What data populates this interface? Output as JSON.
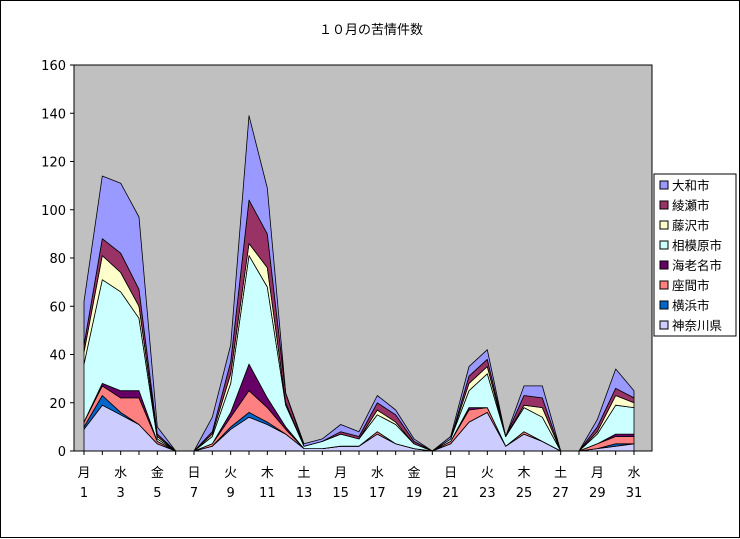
{
  "chart_data": {
    "type": "area",
    "stacked": true,
    "title": "１０月の苦情件数",
    "ylim": [
      0,
      160
    ],
    "yticks": [
      0,
      20,
      40,
      60,
      80,
      100,
      120,
      140,
      160
    ],
    "grid": false,
    "plot_background": "#c0c0c0",
    "legend_position": "right",
    "x": [
      1,
      2,
      3,
      4,
      5,
      6,
      7,
      8,
      9,
      10,
      11,
      12,
      13,
      14,
      15,
      16,
      17,
      18,
      19,
      20,
      21,
      22,
      23,
      24,
      25,
      26,
      27,
      28,
      29,
      30,
      31
    ],
    "tick_labels": [
      {
        "day": "月",
        "num": "1"
      },
      {
        "day": "水",
        "num": "3"
      },
      {
        "day": "金",
        "num": "5"
      },
      {
        "day": "日",
        "num": "7"
      },
      {
        "day": "火",
        "num": "9"
      },
      {
        "day": "木",
        "num": "11"
      },
      {
        "day": "土",
        "num": "13"
      },
      {
        "day": "月",
        "num": "15"
      },
      {
        "day": "水",
        "num": "17"
      },
      {
        "day": "金",
        "num": "19"
      },
      {
        "day": "日",
        "num": "21"
      },
      {
        "day": "火",
        "num": "23"
      },
      {
        "day": "木",
        "num": "25"
      },
      {
        "day": "土",
        "num": "27"
      },
      {
        "day": "月",
        "num": "29"
      },
      {
        "day": "水",
        "num": "31"
      }
    ],
    "series": [
      {
        "name": "神奈川県",
        "color": "#ccccff",
        "values": [
          9,
          19,
          15,
          11,
          3,
          0,
          0,
          2,
          9,
          14,
          11,
          7,
          1,
          1,
          2,
          2,
          7,
          3,
          1,
          0,
          3,
          12,
          16,
          2,
          7,
          4,
          0,
          0,
          1,
          2,
          3
        ]
      },
      {
        "name": "横浜市",
        "color": "#0066cc",
        "values": [
          1,
          4,
          1,
          0,
          0,
          0,
          0,
          0,
          1,
          2,
          1,
          0,
          0,
          0,
          0,
          0,
          0,
          0,
          0,
          0,
          0,
          0,
          0,
          0,
          0,
          0,
          0,
          0,
          0,
          1,
          0
        ]
      },
      {
        "name": "座間市",
        "color": "#ff8080",
        "values": [
          2,
          4,
          6,
          11,
          1,
          0,
          0,
          1,
          4,
          9,
          6,
          2,
          0,
          0,
          0,
          0,
          1,
          0,
          0,
          0,
          1,
          5,
          2,
          0,
          1,
          0,
          0,
          0,
          2,
          3,
          3
        ]
      },
      {
        "name": "海老名市",
        "color": "#660066",
        "values": [
          0,
          1,
          3,
          3,
          0,
          0,
          0,
          0,
          2,
          11,
          4,
          1,
          0,
          0,
          0,
          0,
          0,
          0,
          0,
          0,
          0,
          1,
          0,
          0,
          0,
          0,
          0,
          0,
          0,
          1,
          1
        ]
      },
      {
        "name": "相模原市",
        "color": "#ccffff",
        "values": [
          24,
          43,
          41,
          30,
          1,
          0,
          0,
          3,
          12,
          45,
          46,
          9,
          1,
          3,
          5,
          3,
          7,
          8,
          2,
          0,
          1,
          7,
          14,
          4,
          10,
          10,
          0,
          0,
          4,
          12,
          11
        ]
      },
      {
        "name": "藤沢市",
        "color": "#ffffcc",
        "values": [
          5,
          10,
          8,
          5,
          1,
          0,
          0,
          1,
          4,
          5,
          8,
          1,
          0,
          0,
          0,
          0,
          2,
          1,
          0,
          0,
          0,
          3,
          3,
          0,
          1,
          4,
          0,
          0,
          1,
          4,
          2
        ]
      },
      {
        "name": "綾瀬市",
        "color": "#993366",
        "values": [
          3,
          7,
          8,
          7,
          1,
          0,
          0,
          1,
          5,
          18,
          14,
          4,
          0,
          0,
          1,
          1,
          3,
          3,
          1,
          0,
          0,
          3,
          3,
          0,
          4,
          4,
          0,
          0,
          2,
          3,
          2
        ]
      },
      {
        "name": "大和市",
        "color": "#9999ff",
        "values": [
          18,
          26,
          29,
          30,
          3,
          0,
          0,
          6,
          7,
          35,
          19,
          0,
          1,
          1,
          3,
          2,
          3,
          2,
          1,
          0,
          1,
          4,
          4,
          0,
          4,
          5,
          0,
          0,
          3,
          8,
          3
        ]
      }
    ],
    "legend_order": [
      "大和市",
      "綾瀬市",
      "藤沢市",
      "相模原市",
      "海老名市",
      "座間市",
      "横浜市",
      "神奈川県"
    ]
  }
}
